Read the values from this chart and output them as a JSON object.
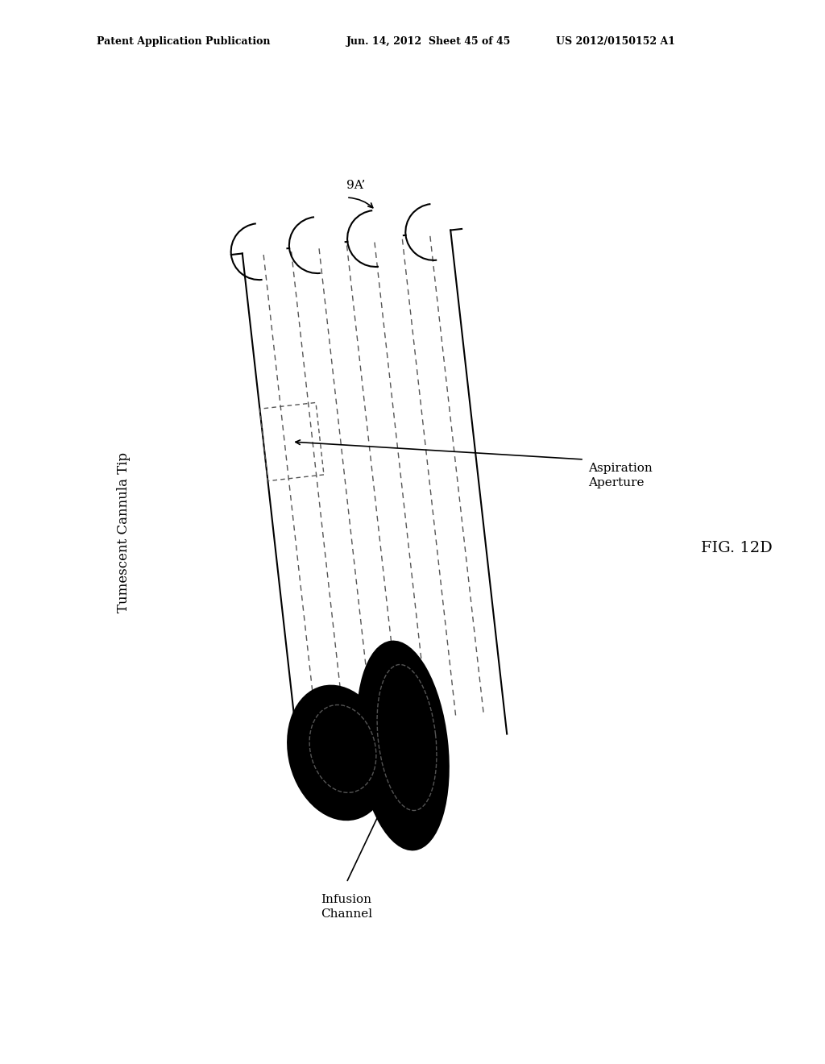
{
  "background_color": "#ffffff",
  "line_color": "#000000",
  "dashed_color": "#555555",
  "header_left": "Patent Application Publication",
  "header_mid": "Jun. 14, 2012  Sheet 45 of 45",
  "header_right": "US 2012/0150152 A1",
  "fig_label": "FIG. 12D",
  "label_9a": "9A’",
  "label_tumescent": "Tumescent Cannula Tip",
  "label_aspiration": "Aspiration\nAperture",
  "label_infusion": "Infusion\nChannel"
}
